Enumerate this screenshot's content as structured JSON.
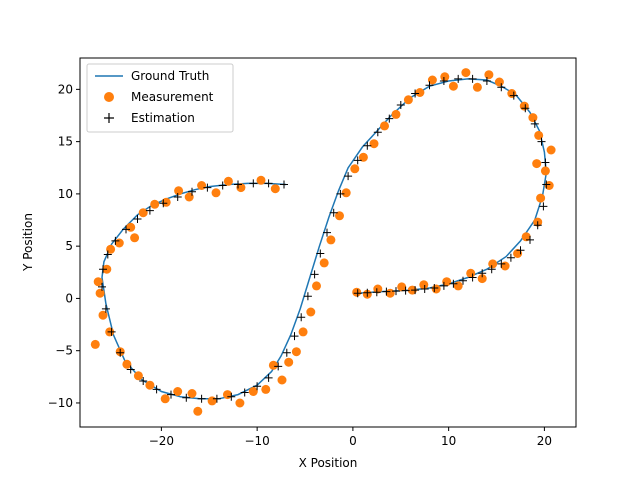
{
  "chart_data": {
    "type": "scatter",
    "xlabel": "X Position",
    "ylabel": "Y Position",
    "xlim": [
      -28.5,
      23.3
    ],
    "ylim": [
      -12.3,
      23.0
    ],
    "xticks": [
      -20,
      -10,
      0,
      10,
      20
    ],
    "yticks": [
      -10,
      -5,
      0,
      5,
      10,
      15,
      20
    ],
    "xtick_labels": [
      "−20",
      "−10",
      "0",
      "10",
      "20"
    ],
    "ytick_labels": [
      "−10",
      "−5",
      "0",
      "5",
      "10",
      "15",
      "20"
    ],
    "grid": false,
    "legend": {
      "position": "top-left",
      "entries": [
        {
          "label": "Ground Truth",
          "marker": "line",
          "color": "#1f77b4"
        },
        {
          "label": "Measurement",
          "marker": "circle",
          "color": "#ff7f0e"
        },
        {
          "label": "Estimation",
          "marker": "plus",
          "color": "#000000"
        }
      ]
    },
    "series": [
      {
        "name": "Ground Truth",
        "kind": "line",
        "color": "#1f77b4",
        "x": [
          0.5,
          2,
          4,
          6,
          8,
          10,
          12,
          14,
          16,
          17.5,
          19,
          19.8,
          20.2,
          20,
          19.5,
          18.5,
          17,
          15.5,
          14,
          12,
          10,
          8,
          6,
          4,
          2.5,
          1,
          -0.5,
          -1.5,
          -2.5,
          -3.5,
          -4.5,
          -5.5,
          -6.5,
          -7.5,
          -8.5,
          -10,
          -12,
          -14,
          -16,
          -18,
          -20,
          -22,
          -23.8,
          -25,
          -25.8,
          -26.2,
          -26,
          -25.2,
          -24,
          -22.5,
          -21,
          -19.5,
          -18,
          -16.5,
          -15,
          -13,
          -11,
          -9,
          -7
        ],
        "y": [
          0.5,
          0.6,
          0.7,
          0.8,
          1,
          1.4,
          2,
          2.8,
          4,
          5.5,
          7.5,
          9.8,
          12,
          14,
          16,
          17.8,
          19.5,
          20.3,
          20.9,
          21,
          20.8,
          20.3,
          19.2,
          17.5,
          16,
          14.5,
          12.5,
          10.3,
          7.8,
          5,
          2,
          -1,
          -3.5,
          -5.5,
          -7,
          -8.3,
          -9.2,
          -9.6,
          -9.6,
          -9.4,
          -8.9,
          -7.8,
          -6,
          -3.5,
          -0.5,
          2,
          3.5,
          5.2,
          6.6,
          8,
          8.9,
          9.5,
          10,
          10.4,
          10.7,
          10.9,
          11,
          11,
          10.9
        ]
      },
      {
        "name": "Measurement",
        "kind": "scatter",
        "color": "#ff7f0e",
        "x": [
          0.4,
          1.5,
          2.6,
          3.9,
          5.1,
          6.2,
          7.4,
          8.7,
          9.8,
          11,
          12.3,
          13.5,
          14.6,
          15.9,
          17.2,
          18.1,
          19.3,
          19.6,
          20.5,
          20.1,
          19.2,
          20.7,
          19.4,
          18.8,
          17.9,
          16.6,
          15.3,
          14.2,
          13,
          11.8,
          10.5,
          9.6,
          8.3,
          7,
          5.8,
          4.5,
          3.3,
          2.2,
          1.1,
          0.2,
          -0.7,
          -1.4,
          -2.3,
          -3,
          -3.8,
          -4.4,
          -5.2,
          -5.9,
          -6.7,
          -7.4,
          -8.3,
          -9.1,
          -10.4,
          -11.8,
          -13.1,
          -14.7,
          -16.8,
          -16.2,
          -18.3,
          -19.6,
          -21.2,
          -22.4,
          -23.6,
          -24.3,
          -25.4,
          -26.1,
          -26.9,
          -26.4,
          -25.7,
          -26.6,
          -25.3,
          -24.4,
          -23.2,
          -22.8,
          -21.9,
          -20.7,
          -19.5,
          -18.2,
          -17.1,
          -15.8,
          -14.3,
          -13,
          -11.7,
          -9.6,
          -8.1
        ],
        "y": [
          0.6,
          0.4,
          0.9,
          0.5,
          1.1,
          0.8,
          1.3,
          0.9,
          1.6,
          1.2,
          2.4,
          1.9,
          3.3,
          3.1,
          4.3,
          5.9,
          7.3,
          9.6,
          10.8,
          12.2,
          12.9,
          14.2,
          15.6,
          17.3,
          18.4,
          19.6,
          20.7,
          21.4,
          20.2,
          21.6,
          20.3,
          21.2,
          20.9,
          19.7,
          19,
          17.6,
          16.5,
          14.8,
          13.5,
          12.4,
          10.1,
          7.9,
          5.6,
          3.4,
          1.2,
          -1.3,
          -3.2,
          -5.1,
          -6.1,
          -7.8,
          -6.4,
          -8.7,
          -8.9,
          -10,
          -9.2,
          -9.8,
          -9.1,
          -10.8,
          -8.9,
          -9.6,
          -8.3,
          -7.4,
          -6.3,
          -5.1,
          -3.2,
          -1.6,
          -4.4,
          0.5,
          2.8,
          1.6,
          4.7,
          5.3,
          6.8,
          5.8,
          8.2,
          9,
          9.2,
          10.3,
          9.7,
          10.8,
          10.1,
          11.2,
          10.6,
          11.3,
          10.5
        ]
      },
      {
        "name": "Estimation",
        "kind": "scatter",
        "color": "#000000",
        "x": [
          0.5,
          1.5,
          2.5,
          3.5,
          4.5,
          5.5,
          6.5,
          7.5,
          8.5,
          9.5,
          10.5,
          11.5,
          12.5,
          13.5,
          14.5,
          15.5,
          16.5,
          17.5,
          18.5,
          19.3,
          19.9,
          20.2,
          20.1,
          19.7,
          19,
          18,
          16.8,
          15.5,
          14,
          12.5,
          11,
          9.5,
          8,
          6.5,
          5,
          3.8,
          2.6,
          1.5,
          0.5,
          -0.5,
          -1.3,
          -2,
          -2.7,
          -3.4,
          -4,
          -4.7,
          -5.4,
          -6.1,
          -6.9,
          -7.8,
          -8.8,
          -10,
          -11.3,
          -12.7,
          -14.2,
          -15.8,
          -17.4,
          -19,
          -20.5,
          -21.9,
          -23.2,
          -24.3,
          -25.2,
          -25.8,
          -26.2,
          -26.1,
          -25.6,
          -24.8,
          -23.7,
          -22.5,
          -21.2,
          -19.8,
          -18.3,
          -16.8,
          -15.2,
          -13.6,
          -12,
          -10.4,
          -8.8,
          -7.2
        ],
        "y": [
          0.5,
          0.55,
          0.6,
          0.65,
          0.7,
          0.75,
          0.8,
          0.9,
          1,
          1.2,
          1.4,
          1.7,
          2,
          2.4,
          2.8,
          3.3,
          3.9,
          4.6,
          5.6,
          7,
          8.8,
          10.9,
          13,
          15,
          16.7,
          18.2,
          19.4,
          20.2,
          20.8,
          21,
          21,
          20.8,
          20.4,
          19.6,
          18.5,
          17.2,
          15.9,
          14.6,
          13.2,
          11.7,
          10,
          8.2,
          6.3,
          4.3,
          2.3,
          0.2,
          -1.8,
          -3.6,
          -5.2,
          -6.5,
          -7.6,
          -8.4,
          -9,
          -9.4,
          -9.6,
          -9.6,
          -9.5,
          -9.2,
          -8.7,
          -7.9,
          -6.8,
          -5.2,
          -3.2,
          -1,
          1.1,
          2.8,
          4.2,
          5.5,
          6.6,
          7.6,
          8.4,
          9.1,
          9.7,
          10.2,
          10.6,
          10.8,
          10.9,
          11,
          11,
          10.9
        ]
      }
    ]
  }
}
